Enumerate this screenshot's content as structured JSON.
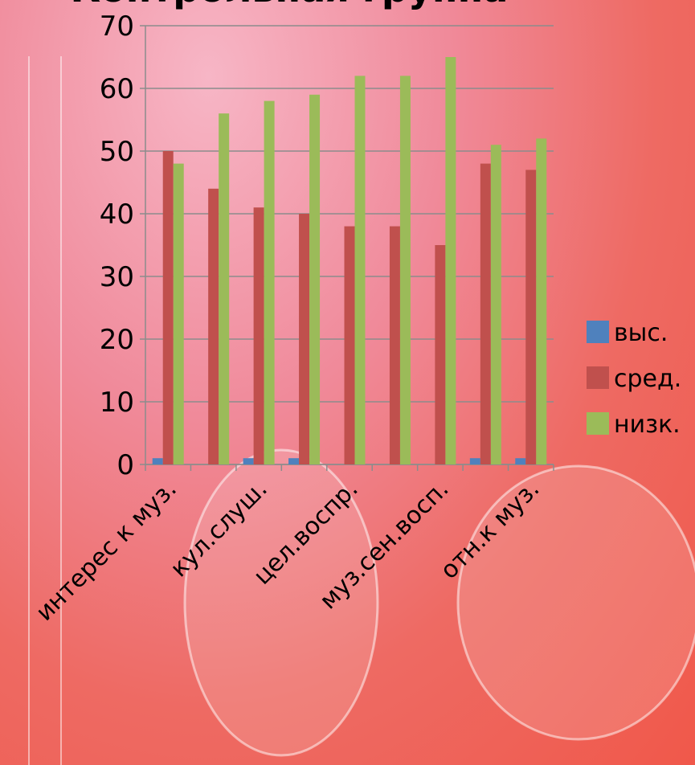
{
  "chart_data": {
    "type": "bar",
    "title": "Контрольная группа",
    "categories": [
      "интерес к муз.",
      null,
      "кул.слуш.",
      null,
      "цел.воспр.",
      null,
      "муз.сен.восп.",
      null,
      "отн.к муз."
    ],
    "series": [
      {
        "name": "выс.",
        "color": "#4f81bd",
        "values": [
          1,
          0,
          1,
          1,
          0,
          0,
          0,
          1,
          1
        ]
      },
      {
        "name": "сред.",
        "color": "#c0504d",
        "values": [
          50,
          44,
          41,
          40,
          38,
          38,
          35,
          48,
          47
        ]
      },
      {
        "name": "низк.",
        "color": "#9bbb59",
        "values": [
          48,
          56,
          58,
          59,
          62,
          62,
          65,
          51,
          52
        ]
      }
    ],
    "ylim": [
      0,
      70
    ],
    "yticks": [
      0,
      10,
      20,
      30,
      40,
      50,
      60,
      70
    ],
    "grid": true,
    "legend": "right"
  }
}
